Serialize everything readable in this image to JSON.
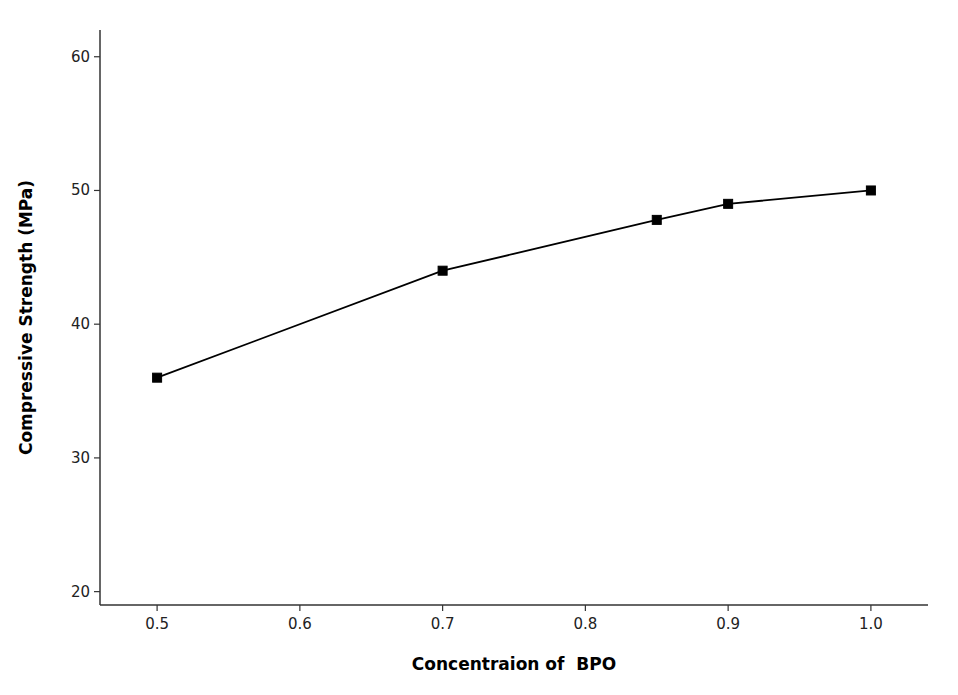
{
  "chart_data": {
    "type": "line",
    "x": [
      0.5,
      0.7,
      0.85,
      0.9,
      1.0
    ],
    "values": [
      36.0,
      44.0,
      47.8,
      49.0,
      50.0
    ],
    "xlabel": "Concentraion of  BPO",
    "ylabel": "Compressive Strength (MPa)",
    "xlim": [
      0.46,
      1.04
    ],
    "ylim": [
      19,
      62
    ],
    "xticks": [
      0.5,
      0.6,
      0.7,
      0.8,
      0.9,
      {
        "value": 1.0,
        "label": "1.0"
      }
    ],
    "yticks": [
      20,
      30,
      40,
      50,
      60
    ],
    "color": "#000000",
    "marker": "square",
    "grid": false
  }
}
